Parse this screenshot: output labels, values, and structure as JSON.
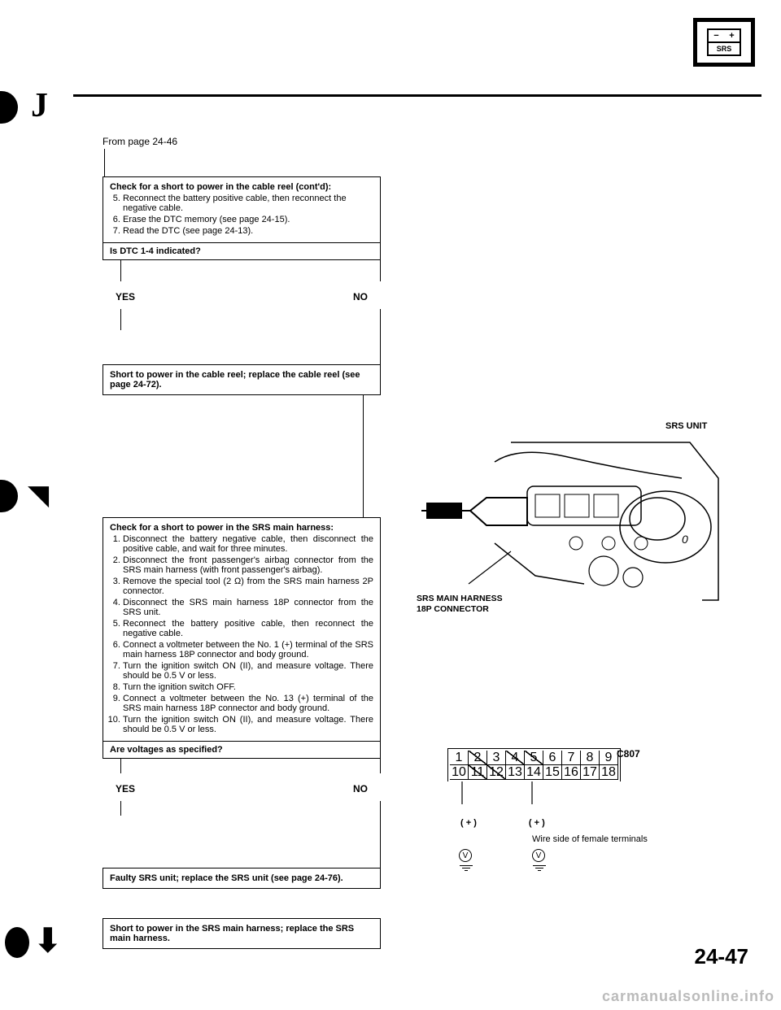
{
  "header": {
    "srs_minus": "−",
    "srs_plus": "+",
    "srs_label": "SRS"
  },
  "from_page": "From page 24-46",
  "check_short_cable_reel": {
    "title": "Check for a short to power in the cable reel (cont'd):",
    "steps": [
      "Reconnect the battery positive cable, then reconnect the negative cable.",
      "Erase the DTC memory (see page 24-15).",
      "Read the DTC (see page 24-13)."
    ],
    "start_num": 5,
    "question": "Is DTC 1-4 indicated?"
  },
  "yesno": {
    "yes": "YES",
    "no": "NO"
  },
  "yes_result_1": "Short to power in the cable reel; replace the cable reel (see page 24-72).",
  "check_short_srs_harness": {
    "title": "Check for a short to power in the SRS main harness:",
    "steps": [
      "Disconnect the battery negative cable, then disconnect the positive cable, and wait for three minutes.",
      "Disconnect the front passenger's airbag connector from the SRS main harness (with front passenger's airbag).",
      "Remove the special tool (2 Ω) from the SRS main harness 2P connector.",
      "Disconnect the SRS main harness 18P connector from the SRS unit.",
      "Reconnect the battery positive cable, then reconnect the negative cable.",
      "Connect a voltmeter between the No. 1 (+) terminal of the SRS main harness 18P connector and body ground.",
      "Turn the ignition switch ON (II), and measure voltage. There should be 0.5 V or less.",
      "Turn the ignition switch OFF.",
      "Connect a voltmeter between the No. 13 (+) terminal of the SRS main harness 18P connector and body ground.",
      "Turn the ignition switch ON (II), and measure voltage. There should be 0.5 V or less."
    ],
    "question": "Are voltages as specified?"
  },
  "yes_result_2": "Faulty SRS unit; replace the SRS unit (see page 24-76).",
  "no_result_2": "Short to power in the SRS main harness; replace the SRS main harness.",
  "figure": {
    "unit_label": "SRS UNIT",
    "harness_l1": "SRS MAIN HARNESS",
    "harness_l2": "18P CONNECTOR"
  },
  "connector": {
    "id": "C807",
    "row1": [
      "1",
      "2",
      "3",
      "4",
      "5",
      "6",
      "7",
      "8",
      "9"
    ],
    "row2": [
      "10",
      "11",
      "12",
      "13",
      "14",
      "15",
      "16",
      "17",
      "18"
    ],
    "struck": [
      2,
      4,
      5,
      11,
      12
    ],
    "plus_a": "( + )",
    "plus_b": "( + )",
    "wire_side": "Wire side of female terminals"
  },
  "page_number": "24-47",
  "watermark": "carmanualsonline.info"
}
